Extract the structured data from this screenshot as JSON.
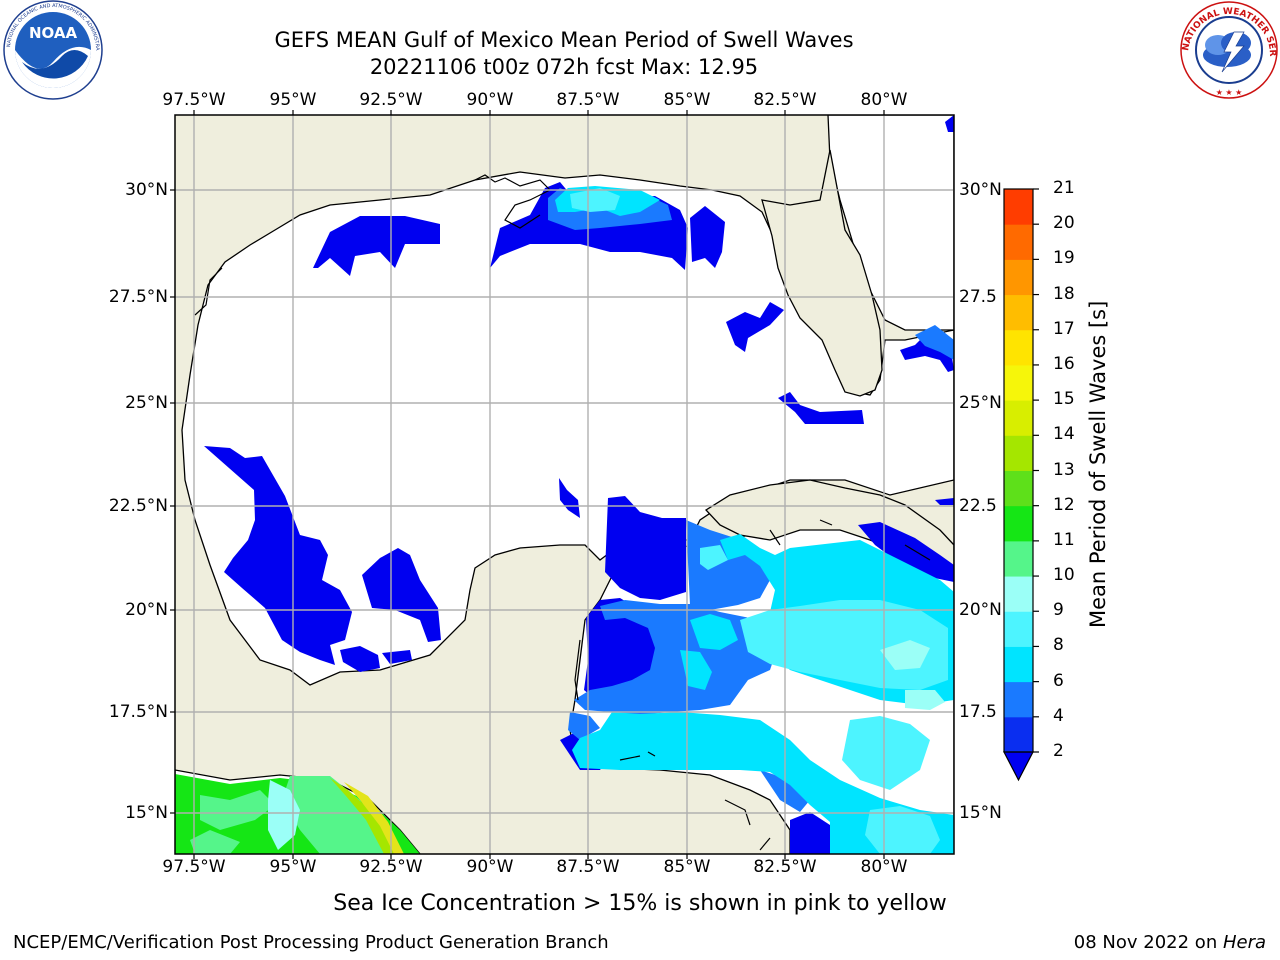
{
  "header": {
    "title_line1": "GEFS MEAN Gulf of Mexico Mean Period of Swell Waves",
    "title_line2": "20221106 t00z 072h fcst   Max: 12.95"
  },
  "logos": {
    "left_name": "NOAA",
    "left_ring_text": "NATIONAL OCEANIC AND ATMOSPHERIC ADMINISTRATION · U.S. DEPARTMENT OF COMMERCE",
    "right_ring_text": "NATIONAL WEATHER SERVICE"
  },
  "map": {
    "lon_ticks": [
      "97.5°W",
      "95°W",
      "92.5°W",
      "90°W",
      "87.5°W",
      "85°W",
      "82.5°W",
      "80°W"
    ],
    "lat_ticks_left": [
      "30°N",
      "27.5°N",
      "25°N",
      "22.5°N",
      "20°N",
      "17.5°N",
      "15°N"
    ],
    "lat_ticks_right": [
      "30°N",
      "27.5",
      "25°N",
      "22.5",
      "20°N",
      "17.5",
      "15°N"
    ],
    "colors": {
      "land": "#efeedd",
      "water": "#ffffff",
      "grid": "#b0b0b0"
    }
  },
  "colorbar": {
    "title": "Mean Period of Swell Waves [s]",
    "tick_labels": [
      "2",
      "4",
      "6",
      "8",
      "9",
      "10",
      "11",
      "12",
      "13",
      "14",
      "15",
      "16",
      "17",
      "18",
      "19",
      "20",
      "21"
    ],
    "colors": [
      "#0a2ef0",
      "#1a7aff",
      "#00e4ff",
      "#4df4ff",
      "#9bfff7",
      "#55f58a",
      "#15e615",
      "#5ee01a",
      "#a5e600",
      "#d8ee00",
      "#f6f60a",
      "#ffe400",
      "#ffbd00",
      "#ff9600",
      "#ff6a00",
      "#ff3d00",
      "#ff0a00"
    ],
    "under_color": "#0000f0"
  },
  "caption": "Sea Ice Concentration > 15% is shown in pink to yellow",
  "footer": {
    "left": "NCEP/EMC/Verification Post Processing Product Generation Branch",
    "right_date": "08 Nov 2022 on ",
    "right_host": "Hera"
  }
}
